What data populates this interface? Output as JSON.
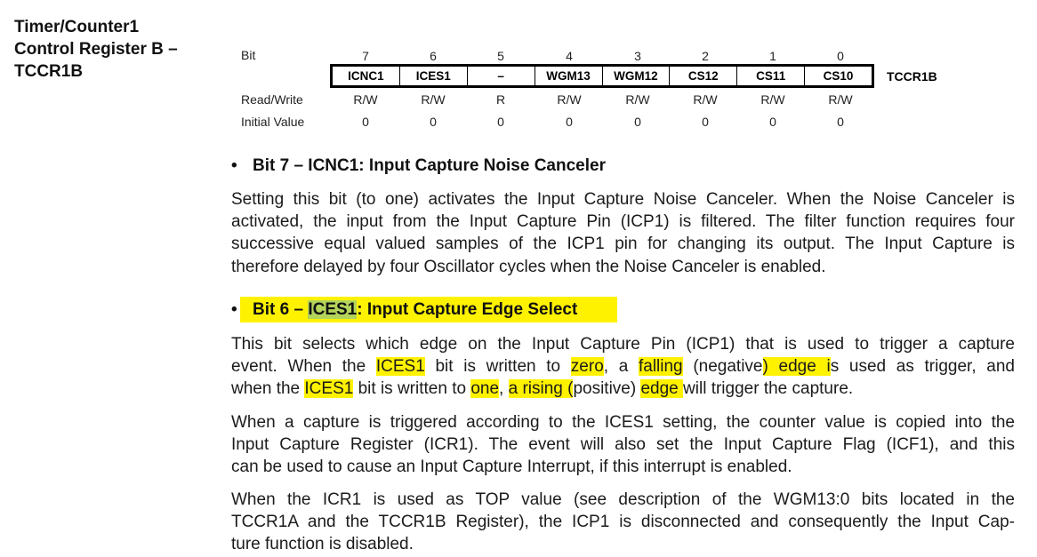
{
  "side_title": [
    "Timer/Counter1",
    "Control Register B –",
    "TCCR1B"
  ],
  "register": {
    "bit_label": "Bit",
    "bit_numbers": [
      "7",
      "6",
      "5",
      "4",
      "3",
      "2",
      "1",
      "0"
    ],
    "bit_names": [
      "ICNC1",
      "ICES1",
      "–",
      "WGM13",
      "WGM12",
      "CS12",
      "CS11",
      "CS10"
    ],
    "name": "TCCR1B",
    "rw_label": "Read/Write",
    "rw_values": [
      "R/W",
      "R/W",
      "R",
      "R/W",
      "R/W",
      "R/W",
      "R/W",
      "R/W"
    ],
    "init_label": "Initial Value",
    "init_values": [
      "0",
      "0",
      "0",
      "0",
      "0",
      "0",
      "0",
      "0"
    ]
  },
  "section1": {
    "bullet": "•",
    "heading": "Bit 7 – ICNC1: Input Capture Noise Canceler",
    "lines": [
      "Setting this bit (to one) activates the Input Capture Noise Canceler. When the Noise Canceler is",
      "activated, the input from the Input Capture Pin (ICP1) is filtered. The filter function requires four",
      "successive equal valued samples of the ICP1 pin for changing its output. The Input Capture is",
      "therefore delayed by four Oscillator cycles when the Noise Canceler is enabled."
    ]
  },
  "section2": {
    "bullet": "•",
    "heading_pre": "Bit 6 – ",
    "heading_code": "ICES1",
    "heading_post": ": Input Capture Edge Select",
    "p1": {
      "l1": "This bit selects which edge on the Input Capture Pin (ICP1) that is used to trigger a capture",
      "l2_a": "event. When the ",
      "l2_b": "ICES1",
      "l2_c": " bit is written to ",
      "l2_d": "zero",
      "l2_e": ", a ",
      "l2_f": "falling",
      "l2_g": " (negative",
      "l2_h": ") edge i",
      "l2_i": "s used as trigger, and",
      "l3_a": "when the ",
      "l3_b": "ICES1",
      "l3_c": " bit is written to ",
      "l3_d": "one",
      "l3_e": ", ",
      "l3_f": "a rising (",
      "l3_g": "positive) ",
      "l3_h": "edge ",
      "l3_i": "will trigger the capture."
    },
    "p2": [
      "When a capture is triggered according to the ICES1 setting, the counter value is copied into the",
      "Input Capture Register (ICR1). The event will also set the Input Capture Flag (ICF1), and this",
      "can be used to cause an Input Capture Interrupt, if this interrupt is enabled."
    ],
    "p3": [
      "When the ICR1 is used as TOP value (see description of the WGM13:0 bits located in the",
      "TCCR1A and the TCCR1B Register), the ICP1 is disconnected and consequently the Input Cap-",
      "ture function is disabled."
    ]
  },
  "colors": {
    "highlight": "#fff200",
    "highlight_overlap": "#b3d35a"
  }
}
